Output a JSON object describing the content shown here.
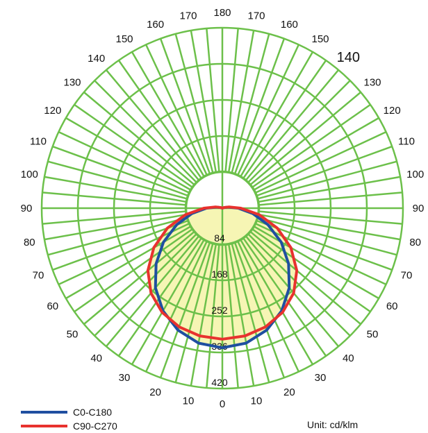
{
  "chart_data": {
    "type": "polar",
    "title": "",
    "unit_text": "Unit: cd/klm",
    "angle_labels": [
      "0",
      "10",
      "20",
      "30",
      "40",
      "50",
      "60",
      "70",
      "80",
      "90",
      "100",
      "110",
      "120",
      "130",
      "140",
      "150",
      "160",
      "170",
      "180"
    ],
    "ring_values": [
      84,
      168,
      252,
      336,
      420
    ],
    "ring_labels": [
      "84",
      "168",
      "252",
      "336",
      "420"
    ],
    "rlim": [
      0,
      420
    ],
    "grid": true,
    "colors": {
      "grid": "#6cc04a",
      "fill": "#f6f5b4",
      "c0": "#1f4fa0",
      "c90": "#e8322e"
    },
    "series": [
      {
        "name": "C0-C180",
        "color": "#1f4fa0",
        "angles": [
          0,
          10,
          20,
          30,
          40,
          50,
          60,
          70,
          80,
          90,
          100,
          110,
          120,
          130,
          140,
          150,
          160,
          170,
          180
        ],
        "values": [
          325,
          319,
          302,
          276,
          242,
          201,
          158,
          113,
          72,
          37,
          14,
          4,
          1,
          0,
          0,
          0,
          0,
          0,
          0
        ]
      },
      {
        "name": "C90-C270",
        "color": "#e8322e",
        "angles": [
          0,
          10,
          20,
          30,
          40,
          50,
          60,
          70,
          80,
          90,
          100,
          110,
          120,
          130,
          140,
          150,
          160,
          170,
          180
        ],
        "values": [
          305,
          302,
          294,
          280,
          258,
          226,
          184,
          136,
          87,
          43,
          16,
          5,
          1,
          0,
          0,
          0,
          0,
          0,
          0
        ]
      }
    ],
    "legend": {
      "placement": "bottom-left",
      "entries": [
        {
          "label": "C0-C180",
          "color": "#1f4fa0"
        },
        {
          "label": "C90-C270",
          "color": "#e8322e"
        }
      ]
    }
  }
}
